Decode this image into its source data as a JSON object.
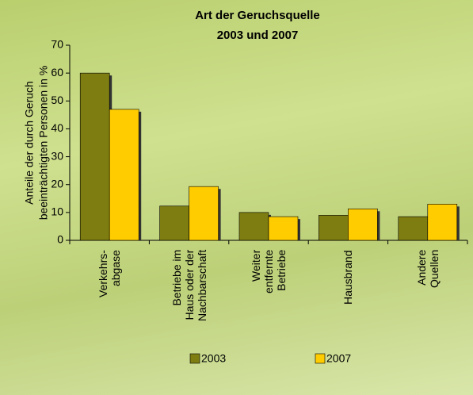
{
  "chart_data": {
    "type": "bar",
    "title": [
      "Art der Geruchsquelle",
      "2003 und 2007"
    ],
    "y_label": [
      "Anteile der durch Geruch",
      "beeinträchtigten Personen in %"
    ],
    "categories": [
      "Verkehrs-\nabgase",
      "Betriebe im\nHaus oder der\nNachbarschaft",
      "Weiter\nentfernte\nBetriebe",
      "Hausbrand",
      "Andere\nQuellen"
    ],
    "series": [
      {
        "name": "2003",
        "color": "#7d7d12",
        "values": [
          60,
          12.3,
          10,
          9,
          8.5
        ]
      },
      {
        "name": "2007",
        "color": "#ffcc00",
        "values": [
          47,
          19.3,
          8.5,
          11.3,
          13
        ]
      }
    ],
    "ylim": [
      0,
      70
    ],
    "yticks": [
      0,
      10,
      20,
      30,
      40,
      50,
      60,
      70
    ],
    "legend": "bottom"
  }
}
